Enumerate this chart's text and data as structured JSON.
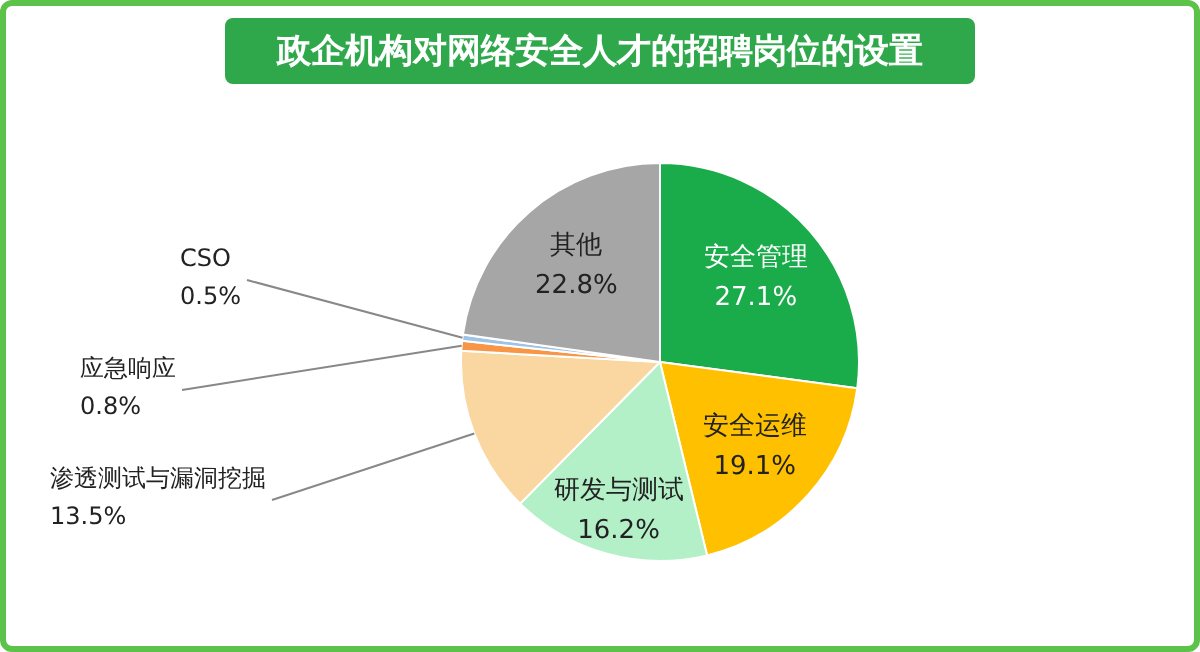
{
  "chart_data": {
    "type": "pie",
    "title": "政企机构对网络安全人才的招聘岗位的设置",
    "categories": [
      "安全管理",
      "安全运维",
      "研发与测试",
      "渗透测试与漏洞挖掘",
      "应急响应",
      "CSO",
      "其他"
    ],
    "values": [
      27.1,
      19.1,
      16.2,
      13.5,
      0.8,
      0.5,
      22.8
    ],
    "value_labels": [
      "27.1%",
      "19.1%",
      "16.2%",
      "13.5%",
      "0.8%",
      "0.5%",
      "22.8%"
    ],
    "colors": [
      "#1aab4a",
      "#ffc000",
      "#b3f0c8",
      "#fad7a0",
      "#f79646",
      "#9dc3e6",
      "#a6a6a6"
    ],
    "legend": false
  }
}
